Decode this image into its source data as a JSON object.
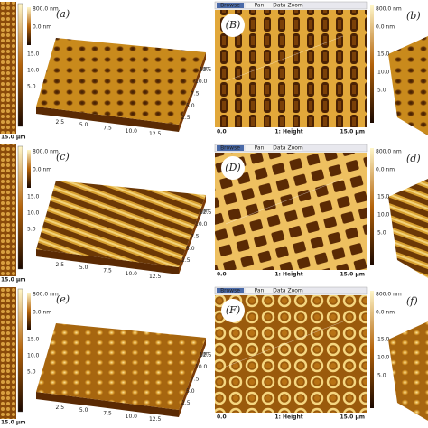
{
  "rows": [
    {
      "left_label": "(a)",
      "image_label": "(B)",
      "right_label": "(b)"
    },
    {
      "left_label": "(c)",
      "image_label": "(D)",
      "right_label": "(d)"
    },
    {
      "left_label": "(e)",
      "image_label": "(F)",
      "right_label": "(f)"
    }
  ],
  "colorbar": {
    "top": "800.0 nm",
    "bottom": "0.0 nm"
  },
  "axis_ticks": [
    "2.5",
    "5.0",
    "7.5",
    "10.0",
    "12.5"
  ],
  "side_ticks": [
    "15.0",
    "10.0",
    "5.0"
  ],
  "axis_unit": "µm",
  "strip_bottom": "15.0 µm",
  "image_footer": {
    "left": "0.0",
    "middle": "1: Height",
    "right": "15.0 µm"
  },
  "toolbar": [
    "Browse",
    "Pan",
    "Data Zoom"
  ]
}
